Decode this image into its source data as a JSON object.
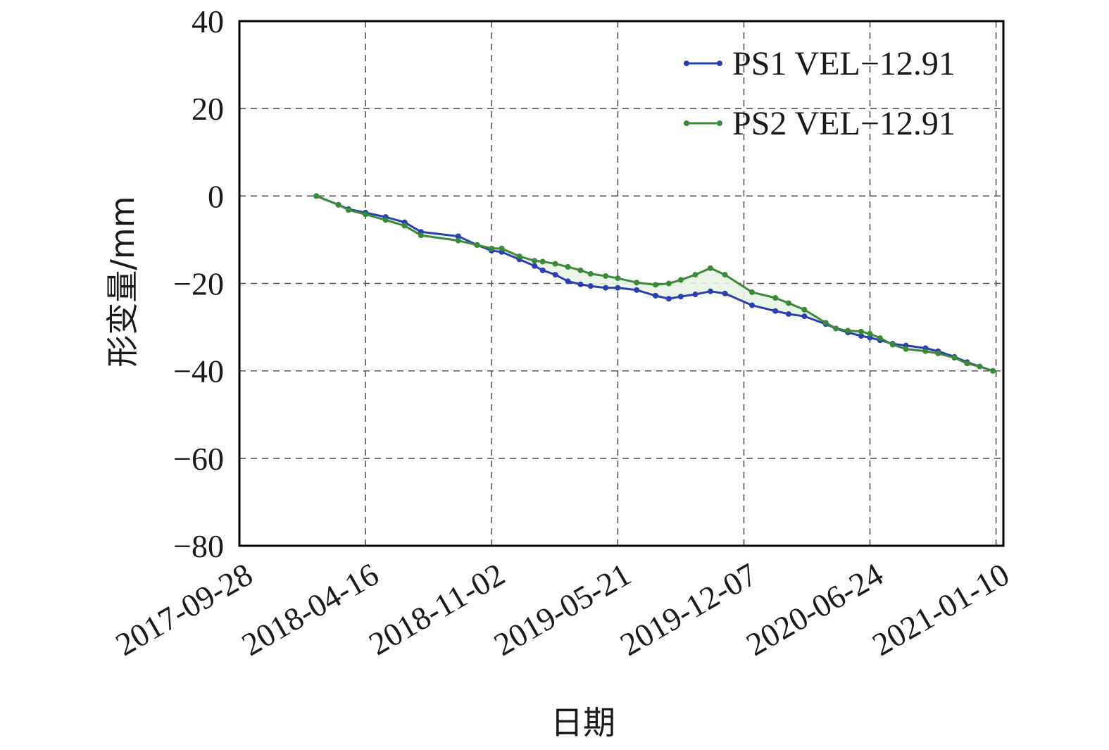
{
  "chart_data": {
    "type": "line",
    "title": "",
    "xlabel": "日期",
    "ylabel": "形变量/mm",
    "x_ticks": [
      "2017-09-28",
      "2018-04-16",
      "2018-11-02",
      "2019-05-21",
      "2019-12-07",
      "2020-06-24",
      "2021-01-10"
    ],
    "y_ticks": [
      "40",
      "20",
      "0",
      "−20",
      "−40",
      "−60",
      "−80"
    ],
    "xlim": [
      "2017-09-28",
      "2021-01-10"
    ],
    "ylim": [
      -80,
      40
    ],
    "grid": true,
    "legend_position": "top-right",
    "series": [
      {
        "name": "PS1 VEL−12.91",
        "color": "#2a3fb0",
        "points": [
          [
            "2018-01-28",
            0.0
          ],
          [
            "2018-03-04",
            -2.0
          ],
          [
            "2018-03-20",
            -3.0
          ],
          [
            "2018-04-16",
            -3.8
          ],
          [
            "2018-05-18",
            -4.8
          ],
          [
            "2018-06-17",
            -6.0
          ],
          [
            "2018-07-13",
            -8.2
          ],
          [
            "2018-09-10",
            -9.2
          ],
          [
            "2018-10-10",
            -11.2
          ],
          [
            "2018-11-02",
            -12.5
          ],
          [
            "2018-11-18",
            -12.8
          ],
          [
            "2018-12-16",
            -14.5
          ],
          [
            "2019-01-09",
            -16.0
          ],
          [
            "2019-01-22",
            -17.0
          ],
          [
            "2019-02-11",
            -18.0
          ],
          [
            "2019-03-03",
            -19.5
          ],
          [
            "2019-03-23",
            -20.2
          ],
          [
            "2019-04-08",
            -20.6
          ],
          [
            "2019-05-02",
            -21.0
          ],
          [
            "2019-05-21",
            -21.0
          ],
          [
            "2019-06-20",
            -21.5
          ],
          [
            "2019-07-20",
            -22.8
          ],
          [
            "2019-08-10",
            -23.5
          ],
          [
            "2019-08-29",
            -23.0
          ],
          [
            "2019-09-21",
            -22.5
          ],
          [
            "2019-10-15",
            -21.8
          ],
          [
            "2019-11-07",
            -22.3
          ],
          [
            "2019-12-20",
            -25.0
          ],
          [
            "2020-01-26",
            -26.3
          ],
          [
            "2020-02-16",
            -27.0
          ],
          [
            "2020-03-12",
            -27.5
          ],
          [
            "2020-04-15",
            -29.3
          ],
          [
            "2020-05-01",
            -30.3
          ],
          [
            "2020-05-20",
            -31.2
          ],
          [
            "2020-06-10",
            -32.0
          ],
          [
            "2020-06-24",
            -32.4
          ],
          [
            "2020-07-10",
            -33.0
          ],
          [
            "2020-07-30",
            -33.8
          ],
          [
            "2020-08-20",
            -34.2
          ],
          [
            "2020-09-20",
            -34.8
          ],
          [
            "2020-10-10",
            -35.5
          ],
          [
            "2020-11-05",
            -36.8
          ],
          [
            "2020-11-25",
            -38.0
          ],
          [
            "2020-12-15",
            -39.0
          ],
          [
            "2021-01-05",
            -40.0
          ]
        ]
      },
      {
        "name": "PS2 VEL−12.91",
        "color": "#3a8a3a",
        "points": [
          [
            "2018-01-28",
            0.0
          ],
          [
            "2018-03-04",
            -2.0
          ],
          [
            "2018-03-20",
            -3.2
          ],
          [
            "2018-04-16",
            -4.2
          ],
          [
            "2018-05-18",
            -5.5
          ],
          [
            "2018-06-17",
            -6.8
          ],
          [
            "2018-07-13",
            -9.0
          ],
          [
            "2018-09-10",
            -10.2
          ],
          [
            "2018-10-10",
            -11.2
          ],
          [
            "2018-11-02",
            -12.0
          ],
          [
            "2018-11-18",
            -12.0
          ],
          [
            "2018-12-16",
            -13.8
          ],
          [
            "2019-01-09",
            -14.8
          ],
          [
            "2019-01-22",
            -15.0
          ],
          [
            "2019-02-11",
            -15.5
          ],
          [
            "2019-03-03",
            -16.2
          ],
          [
            "2019-03-23",
            -17.0
          ],
          [
            "2019-04-08",
            -17.8
          ],
          [
            "2019-05-02",
            -18.3
          ],
          [
            "2019-05-21",
            -18.8
          ],
          [
            "2019-06-20",
            -19.8
          ],
          [
            "2019-07-20",
            -20.3
          ],
          [
            "2019-08-10",
            -20.0
          ],
          [
            "2019-08-29",
            -19.2
          ],
          [
            "2019-09-21",
            -18.0
          ],
          [
            "2019-10-15",
            -16.5
          ],
          [
            "2019-11-07",
            -18.0
          ],
          [
            "2019-12-20",
            -22.0
          ],
          [
            "2020-01-26",
            -23.3
          ],
          [
            "2020-02-16",
            -24.5
          ],
          [
            "2020-03-12",
            -26.0
          ],
          [
            "2020-04-15",
            -29.0
          ],
          [
            "2020-05-01",
            -30.3
          ],
          [
            "2020-05-20",
            -30.8
          ],
          [
            "2020-06-10",
            -31.0
          ],
          [
            "2020-06-24",
            -31.5
          ],
          [
            "2020-07-10",
            -32.5
          ],
          [
            "2020-07-30",
            -34.0
          ],
          [
            "2020-08-20",
            -35.0
          ],
          [
            "2020-09-20",
            -35.5
          ],
          [
            "2020-10-10",
            -36.0
          ],
          [
            "2020-11-05",
            -37.0
          ],
          [
            "2020-11-25",
            -38.3
          ],
          [
            "2020-12-15",
            -39.0
          ],
          [
            "2021-01-05",
            -40.0
          ]
        ]
      }
    ]
  }
}
